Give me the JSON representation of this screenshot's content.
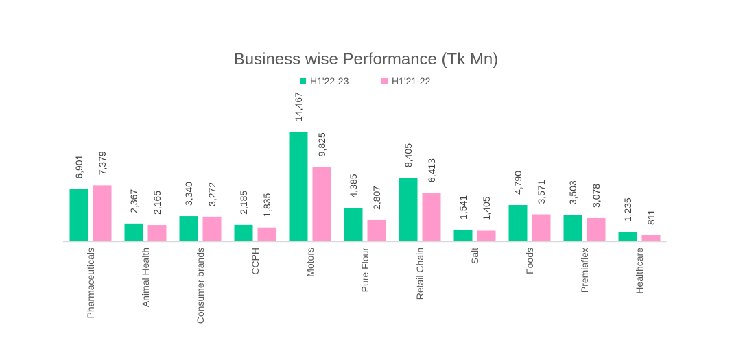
{
  "chart_data": {
    "type": "bar",
    "title": "Business wise Performance (Tk Mn)",
    "categories": [
      "Pharmaceuticals",
      "Animal Health",
      "Consumer brands",
      "CCPH",
      "Motors",
      "Pure Flour",
      "Retail Chain",
      "Salt",
      "Foods",
      "Premiaflex",
      "Healthcare"
    ],
    "series": [
      {
        "name": "H1'22-23",
        "color": "#00cc96",
        "values": [
          6901,
          2367,
          3340,
          2185,
          14467,
          4385,
          8405,
          1541,
          4790,
          3503,
          1235
        ],
        "labels": [
          "6,901",
          "2,367",
          "3,340",
          "2,185",
          "14,467",
          "4,385",
          "8,405",
          "1,541",
          "4,790",
          "3,503",
          "1,235"
        ]
      },
      {
        "name": "H1'21-22",
        "color": "#ff99cc",
        "values": [
          7379,
          2165,
          3272,
          1835,
          9825,
          2807,
          6413,
          1405,
          3571,
          3078,
          811
        ],
        "labels": [
          "7,379",
          "2,165",
          "3,272",
          "1,835",
          "9,825",
          "2,807",
          "6,413",
          "1,405",
          "3,571",
          "3,078",
          "811"
        ]
      }
    ],
    "xlabel": "",
    "ylabel": "",
    "ylim": [
      0,
      14467
    ],
    "grid": false,
    "legend": "top-center"
  }
}
